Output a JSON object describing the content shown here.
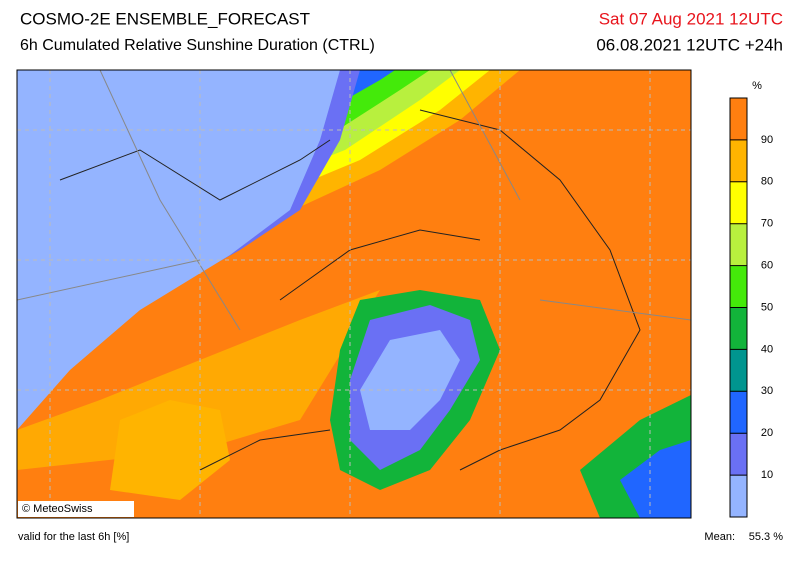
{
  "header": {
    "title": "COSMO-2E ENSEMBLE_FORECAST",
    "subtitle": "6h Cumulated Relative Sunshine Duration (CTRL)",
    "date": "Sat 07 Aug 2021 12UTC",
    "run": "06.08.2021 12UTC +24h"
  },
  "map": {
    "copyright": "© MeteoSwiss"
  },
  "colorbar": {
    "unit": "%",
    "lim": [
      0,
      100
    ],
    "ticks": [
      10,
      20,
      30,
      40,
      50,
      60,
      70,
      80,
      90
    ],
    "colors": [
      "#94b4ff",
      "#6a70f4",
      "#2066ff",
      "#00958f",
      "#12b43a",
      "#44ea0a",
      "#b8f03e",
      "#ffff00",
      "#ffb400",
      "#ff7f10"
    ]
  },
  "footer": {
    "validity": "valid for the last 6h [%]",
    "mean_label": "Mean:",
    "mean": "55.3 %"
  }
}
